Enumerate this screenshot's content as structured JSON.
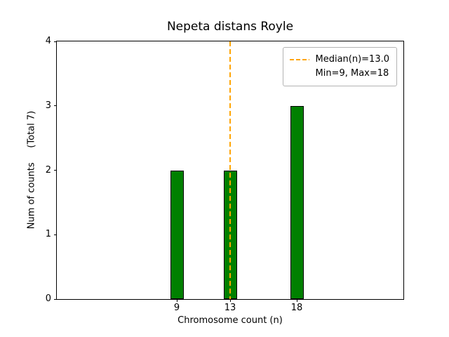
{
  "chart_data": {
    "type": "bar",
    "title": "Nepeta distans Royle",
    "xlabel": "Chromosome count (n)",
    "ylabel": "Num of counts     (Total 7)",
    "x": [
      9,
      13,
      18
    ],
    "values": [
      2,
      2,
      3
    ],
    "bar_width": 1,
    "bar_color": "#008000",
    "bar_edge_color": "#000000",
    "xlim": [
      0,
      26
    ],
    "ylim": [
      0,
      4
    ],
    "xticks": [
      9,
      13,
      18
    ],
    "yticks": [
      0,
      1,
      2,
      3,
      4
    ],
    "grid": false,
    "median_line": {
      "x": 13,
      "color": "#FFA500",
      "style": "dashed",
      "width": 2
    },
    "legend": {
      "position": "upper right",
      "entries": [
        {
          "label": "Median(n)=13.0",
          "marker": "dashed-line",
          "color": "#FFA500"
        },
        {
          "label": "Min=9, Max=18",
          "marker": "none",
          "color": null
        }
      ]
    }
  }
}
